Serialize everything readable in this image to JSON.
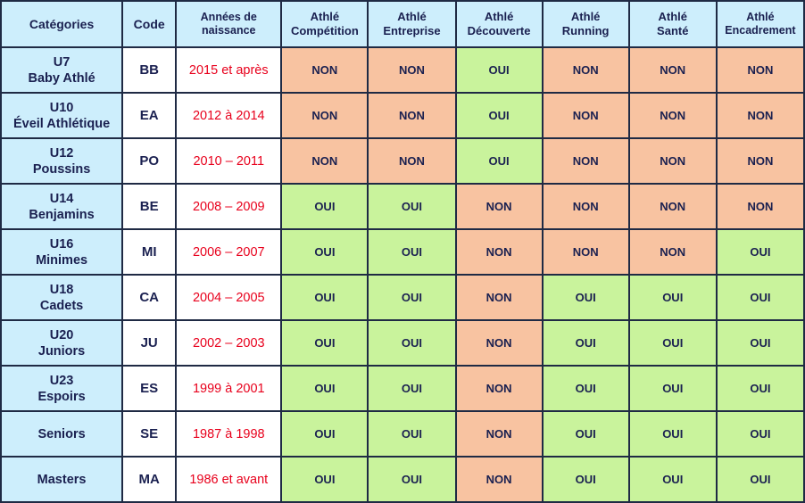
{
  "headers": {
    "categories": "Catégories",
    "code": "Code",
    "years": [
      "Années de",
      "naissance"
    ],
    "programs": [
      [
        "Athlé",
        "Compétition"
      ],
      [
        "Athlé",
        "Entreprise"
      ],
      [
        "Athlé",
        "Découverte"
      ],
      [
        "Athlé",
        "Running"
      ],
      [
        "Athlé",
        "Santé"
      ],
      [
        "Athlé",
        "Encadrement"
      ]
    ]
  },
  "rows": [
    {
      "cat": [
        "U7",
        "Baby Athlé"
      ],
      "code": "BB",
      "years": "2015 et après",
      "values": [
        "NON",
        "NON",
        "OUI",
        "NON",
        "NON",
        "NON"
      ]
    },
    {
      "cat": [
        "U10",
        "Éveil Athlétique"
      ],
      "code": "EA",
      "years": "2012 à 2014",
      "values": [
        "NON",
        "NON",
        "OUI",
        "NON",
        "NON",
        "NON"
      ]
    },
    {
      "cat": [
        "U12",
        "Poussins"
      ],
      "code": "PO",
      "years": "2010 – 2011",
      "values": [
        "NON",
        "NON",
        "OUI",
        "NON",
        "NON",
        "NON"
      ]
    },
    {
      "cat": [
        "U14",
        "Benjamins"
      ],
      "code": "BE",
      "years": "2008 – 2009",
      "values": [
        "OUI",
        "OUI",
        "NON",
        "NON",
        "NON",
        "NON"
      ]
    },
    {
      "cat": [
        "U16",
        "Minimes"
      ],
      "code": "MI",
      "years": "2006 – 2007",
      "values": [
        "OUI",
        "OUI",
        "NON",
        "NON",
        "NON",
        "OUI"
      ]
    },
    {
      "cat": [
        "U18",
        "Cadets"
      ],
      "code": "CA",
      "years": "2004 – 2005",
      "values": [
        "OUI",
        "OUI",
        "NON",
        "OUI",
        "OUI",
        "OUI"
      ]
    },
    {
      "cat": [
        "U20",
        "Juniors"
      ],
      "code": "JU",
      "years": "2002 – 2003",
      "values": [
        "OUI",
        "OUI",
        "NON",
        "OUI",
        "OUI",
        "OUI"
      ]
    },
    {
      "cat": [
        "U23",
        "Espoirs"
      ],
      "code": "ES",
      "years": "1999 à 2001",
      "values": [
        "OUI",
        "OUI",
        "NON",
        "OUI",
        "OUI",
        "OUI"
      ]
    },
    {
      "cat": [
        "Seniors"
      ],
      "code": "SE",
      "years": "1987 à 1998",
      "values": [
        "OUI",
        "OUI",
        "NON",
        "OUI",
        "OUI",
        "OUI"
      ]
    },
    {
      "cat": [
        "Masters"
      ],
      "code": "MA",
      "years": "1986 et avant",
      "values": [
        "OUI",
        "OUI",
        "NON",
        "OUI",
        "OUI",
        "OUI"
      ]
    }
  ],
  "colors": {
    "header_bg": "#cdeefc",
    "oui_bg": "#c9f39c",
    "non_bg": "#f8c3a1",
    "years_text": "#e8001c",
    "text": "#1a2050",
    "border": "#1f2a44"
  }
}
